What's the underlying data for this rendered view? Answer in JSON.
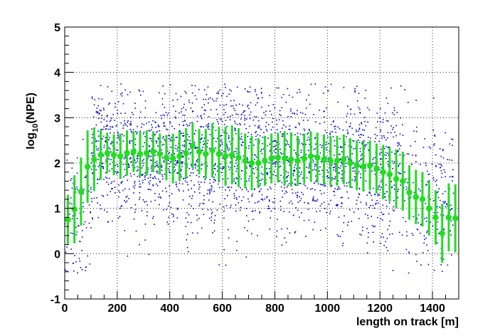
{
  "chart_data": {
    "type": "scatter",
    "title": "",
    "xlabel": "length on track [m]",
    "ylabel_main": "log",
    "ylabel_sub": "10",
    "ylabel_rest": "(NPE)",
    "xlim": [
      0,
      1500
    ],
    "ylim": [
      -1,
      5
    ],
    "x_ticks": [
      0,
      200,
      400,
      600,
      800,
      1000,
      1200,
      1400
    ],
    "y_ticks": [
      -1,
      0,
      1,
      2,
      3,
      4,
      5
    ],
    "grid": true,
    "scatter_color": "#0000cc",
    "profile_color": "#22dd22",
    "profile": {
      "x": [
        12,
        37,
        62,
        87,
        112,
        137,
        162,
        187,
        212,
        237,
        262,
        287,
        312,
        337,
        362,
        387,
        412,
        437,
        462,
        487,
        512,
        537,
        562,
        587,
        612,
        637,
        662,
        687,
        712,
        737,
        762,
        787,
        812,
        837,
        862,
        887,
        912,
        937,
        962,
        987,
        1012,
        1037,
        1062,
        1087,
        1112,
        1137,
        1162,
        1187,
        1212,
        1237,
        1262,
        1287,
        1312,
        1337,
        1362,
        1387,
        1412,
        1437,
        1462,
        1487
      ],
      "y": [
        0.75,
        0.98,
        1.37,
        1.92,
        2.08,
        2.18,
        2.22,
        2.18,
        2.15,
        2.22,
        2.25,
        2.2,
        2.22,
        2.25,
        2.2,
        2.12,
        2.1,
        2.15,
        2.22,
        2.38,
        2.25,
        2.2,
        2.28,
        2.2,
        2.15,
        2.18,
        2.12,
        2.05,
        2.0,
        2.0,
        2.05,
        2.1,
        2.12,
        2.1,
        2.08,
        2.05,
        2.1,
        2.15,
        2.12,
        2.08,
        2.05,
        2.05,
        2.08,
        2.0,
        1.95,
        1.92,
        1.95,
        1.88,
        1.8,
        1.75,
        1.65,
        1.6,
        1.35,
        1.25,
        1.2,
        1.0,
        0.8,
        0.45,
        0.8,
        0.78
      ],
      "err": [
        0.55,
        0.75,
        0.75,
        0.8,
        0.7,
        0.55,
        0.45,
        0.45,
        0.5,
        0.5,
        0.45,
        0.5,
        0.5,
        0.45,
        0.45,
        0.5,
        0.55,
        0.55,
        0.55,
        0.5,
        0.5,
        0.55,
        0.6,
        0.6,
        0.65,
        0.65,
        0.65,
        0.6,
        0.6,
        0.55,
        0.55,
        0.55,
        0.55,
        0.6,
        0.6,
        0.55,
        0.55,
        0.55,
        0.55,
        0.55,
        0.55,
        0.55,
        0.55,
        0.55,
        0.55,
        0.55,
        0.55,
        0.55,
        0.6,
        0.6,
        0.65,
        0.65,
        0.6,
        0.6,
        0.6,
        0.6,
        0.6,
        0.65,
        0.75,
        0.75
      ]
    },
    "scatter_bands": [
      {
        "x": [
          0,
          100
        ],
        "y_center": 0.9,
        "spread": 0.8,
        "count": 90
      },
      {
        "x": [
          100,
          450
        ],
        "y_center": 2.15,
        "spread": 0.65,
        "count": 720
      },
      {
        "x": [
          450,
          750
        ],
        "y_center": 2.15,
        "spread": 0.85,
        "count": 620
      },
      {
        "x": [
          750,
          1150
        ],
        "y_center": 2.05,
        "spread": 0.7,
        "count": 760
      },
      {
        "x": [
          1150,
          1300
        ],
        "y_center": 1.75,
        "spread": 0.8,
        "count": 240
      },
      {
        "x": [
          1300,
          1480
        ],
        "y_center": 1.2,
        "spread": 0.85,
        "count": 200
      }
    ]
  }
}
